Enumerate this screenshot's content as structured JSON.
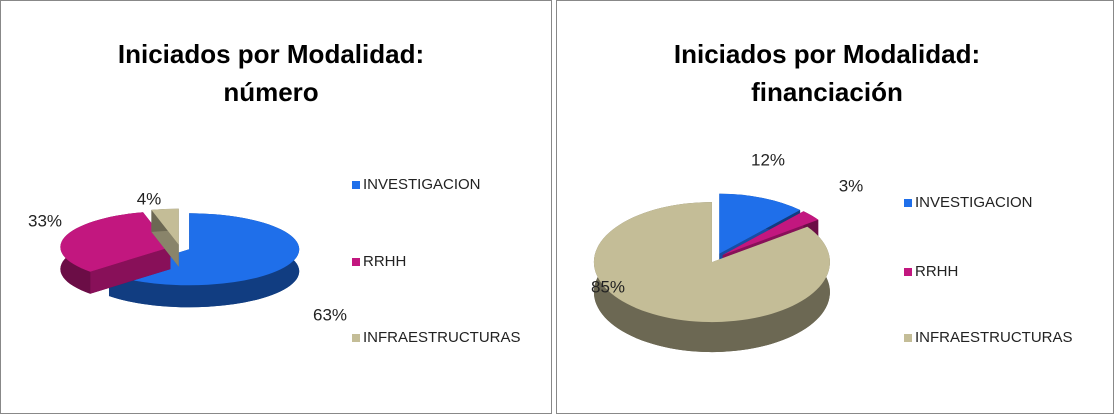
{
  "chart_data": [
    {
      "type": "pie",
      "title": "Iniciados por Modalidad: número",
      "categories": [
        "INVESTIGACION",
        "RRHH",
        "INFRAESTRUCTURAS"
      ],
      "values": [
        63,
        33,
        4
      ],
      "value_labels": [
        "63%",
        "33%",
        "4%"
      ],
      "colors": [
        "#1f6fea",
        "#c2177f",
        "#c4bd97"
      ]
    },
    {
      "type": "pie",
      "title": "Iniciados por Modalidad: financiación",
      "categories": [
        "INVESTIGACION",
        "RRHH",
        "INFRAESTRUCTURAS"
      ],
      "values": [
        12,
        3,
        85
      ],
      "value_labels": [
        "12%",
        "3%",
        "85%"
      ],
      "colors": [
        "#1f6fea",
        "#c2177f",
        "#c4bd97"
      ]
    }
  ]
}
